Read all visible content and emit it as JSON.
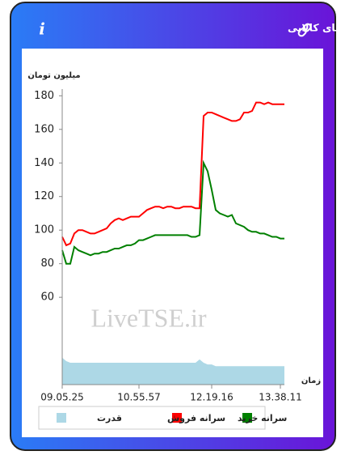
{
  "chart_data": {
    "type": "line",
    "title": "سرانه ی خرید و فروش حقیقی در صندوق های کالایی",
    "y_label": "میلیون تومان",
    "x_label": "زمان",
    "watermark": "LiveTSE.ir",
    "ylim": [
      8,
      184
    ],
    "yticks": [
      60,
      80,
      100,
      120,
      140,
      160,
      180
    ],
    "xlim": [
      0,
      55
    ],
    "xticks": [
      {
        "value": 0,
        "label": "09.05.25"
      },
      {
        "value": 19,
        "label": "10.55.57"
      },
      {
        "value": 37,
        "label": "12.19.16"
      },
      {
        "value": 54,
        "label": "13.38.11"
      }
    ],
    "series": [
      {
        "name": "سرانه خرید",
        "color": "#008000",
        "kind": "line",
        "values": [
          88,
          80,
          80,
          90,
          88,
          87,
          86,
          85,
          86,
          86,
          87,
          87,
          88,
          89,
          89,
          90,
          91,
          91,
          92,
          94,
          94,
          95,
          96,
          97,
          97,
          97,
          97,
          97,
          97,
          97,
          97,
          97,
          96,
          96,
          97,
          140,
          135,
          124,
          112,
          110,
          109,
          108,
          109,
          104,
          103,
          102,
          100,
          99,
          99,
          98,
          98,
          97,
          96,
          96,
          95,
          95
        ]
      },
      {
        "name": "سرانه فروش",
        "color": "#ff0000",
        "kind": "line",
        "values": [
          96,
          91,
          92,
          98,
          100,
          100,
          99,
          98,
          98,
          99,
          100,
          101,
          104,
          106,
          107,
          106,
          107,
          108,
          108,
          108,
          110,
          112,
          113,
          114,
          114,
          113,
          114,
          114,
          113,
          113,
          114,
          114,
          114,
          113,
          113,
          168,
          170,
          170,
          169,
          168,
          167,
          166,
          165,
          165,
          166,
          170,
          170,
          171,
          176,
          176,
          175,
          176,
          175,
          175,
          175,
          175
        ]
      },
      {
        "name": "قدرت",
        "color": "#add8e6",
        "kind": "area",
        "values": [
          24,
          22,
          21,
          21,
          21,
          21,
          21,
          21,
          21,
          21,
          21,
          21,
          21,
          21,
          21,
          21,
          21,
          21,
          21,
          21,
          21,
          21,
          21,
          21,
          21,
          21,
          21,
          21,
          21,
          21,
          21,
          21,
          21,
          21,
          23,
          21,
          20,
          20,
          19,
          19,
          19,
          19,
          19,
          19,
          19,
          19,
          19,
          19,
          19,
          19,
          19,
          19,
          19,
          19,
          19,
          19
        ]
      }
    ]
  }
}
